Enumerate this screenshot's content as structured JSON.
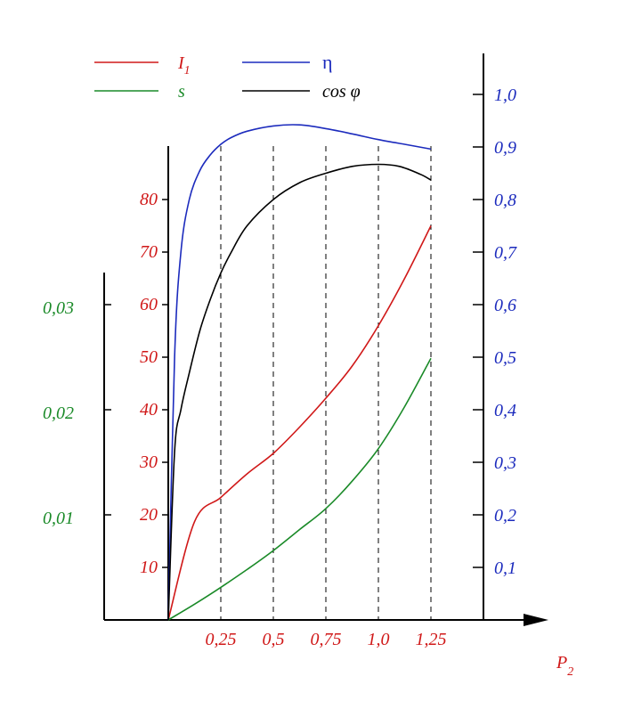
{
  "chart_data": {
    "type": "line",
    "title": "",
    "x_axis": {
      "label_main": "P",
      "label_sub": "2",
      "ticks": [
        0.25,
        0.5,
        0.75,
        1.0,
        1.25
      ],
      "tick_labels": [
        "0,25",
        "0,5",
        "0,75",
        "1,0",
        "1,25"
      ],
      "range": [
        0,
        1.5
      ],
      "gridlines": "dashed-vertical-at-ticks"
    },
    "axes": {
      "current": {
        "color": "#d01818",
        "range": [
          0,
          90
        ],
        "ticks": [
          10,
          20,
          30,
          40,
          50,
          60,
          70,
          80
        ],
        "tick_labels": [
          "10",
          "20",
          "30",
          "40",
          "50",
          "60",
          "70",
          "80"
        ]
      },
      "slip": {
        "color": "#1a8a28",
        "range": [
          0,
          0.033
        ],
        "ticks": [
          0.01,
          0.02,
          0.03
        ],
        "tick_labels": [
          "0,01",
          "0,02",
          "0,03"
        ]
      },
      "unit": {
        "color": "#1c2bbd",
        "range": [
          0,
          1.07
        ],
        "ticks": [
          0.1,
          0.2,
          0.3,
          0.4,
          0.5,
          0.6,
          0.7,
          0.8,
          0.9,
          1.0
        ],
        "tick_labels": [
          "0,1",
          "0,2",
          "0,3",
          "0,4",
          "0,5",
          "0,6",
          "0,7",
          "0,8",
          "0,9",
          "1,0"
        ]
      }
    },
    "series": [
      {
        "name": "I",
        "name_sub": "1",
        "color": "#d01818",
        "axis": "current",
        "x": [
          0,
          0.125,
          0.25,
          0.375,
          0.5,
          0.625,
          0.75,
          0.875,
          1.0,
          1.125,
          1.25
        ],
        "values": [
          0,
          18.7,
          23.3,
          27.8,
          31.7,
          36.7,
          42.2,
          48.3,
          56.0,
          65.0,
          75.0
        ]
      },
      {
        "name": "s",
        "color": "#1a8a28",
        "axis": "slip",
        "x": [
          0,
          0.125,
          0.25,
          0.375,
          0.5,
          0.625,
          0.75,
          0.875,
          1.0,
          1.125,
          1.25
        ],
        "values": [
          0,
          0.0015,
          0.0031,
          0.0048,
          0.0066,
          0.0086,
          0.0106,
          0.0132,
          0.0163,
          0.0203,
          0.0249
        ]
      },
      {
        "name": "η",
        "color": "#1c2bbd",
        "axis": "unit",
        "x": [
          0,
          0.03,
          0.06,
          0.1,
          0.15,
          0.2,
          0.25,
          0.3,
          0.375,
          0.5,
          0.625,
          0.75,
          0.875,
          1.0,
          1.125,
          1.25
        ],
        "values": [
          0,
          0.5,
          0.7,
          0.8,
          0.855,
          0.885,
          0.905,
          0.918,
          0.93,
          0.94,
          0.942,
          0.935,
          0.925,
          0.914,
          0.905,
          0.896
        ]
      },
      {
        "name": "cos φ",
        "color": "#000000",
        "axis": "unit",
        "x": [
          0,
          0.03,
          0.06,
          0.1,
          0.15,
          0.2,
          0.25,
          0.3,
          0.375,
          0.5,
          0.625,
          0.75,
          0.875,
          1.0,
          1.1,
          1.2,
          1.25
        ],
        "values": [
          0,
          0.32,
          0.4,
          0.47,
          0.55,
          0.61,
          0.66,
          0.7,
          0.75,
          0.8,
          0.832,
          0.85,
          0.863,
          0.867,
          0.863,
          0.848,
          0.837
        ]
      }
    ],
    "legend": {
      "placement": "top",
      "entries": [
        {
          "label": "I",
          "label_sub": "1",
          "color": "#d01818"
        },
        {
          "label": "η",
          "color": "#1c2bbd"
        },
        {
          "label": "s",
          "color": "#1a8a28"
        },
        {
          "label": "cos φ",
          "color": "#000000"
        }
      ]
    }
  }
}
